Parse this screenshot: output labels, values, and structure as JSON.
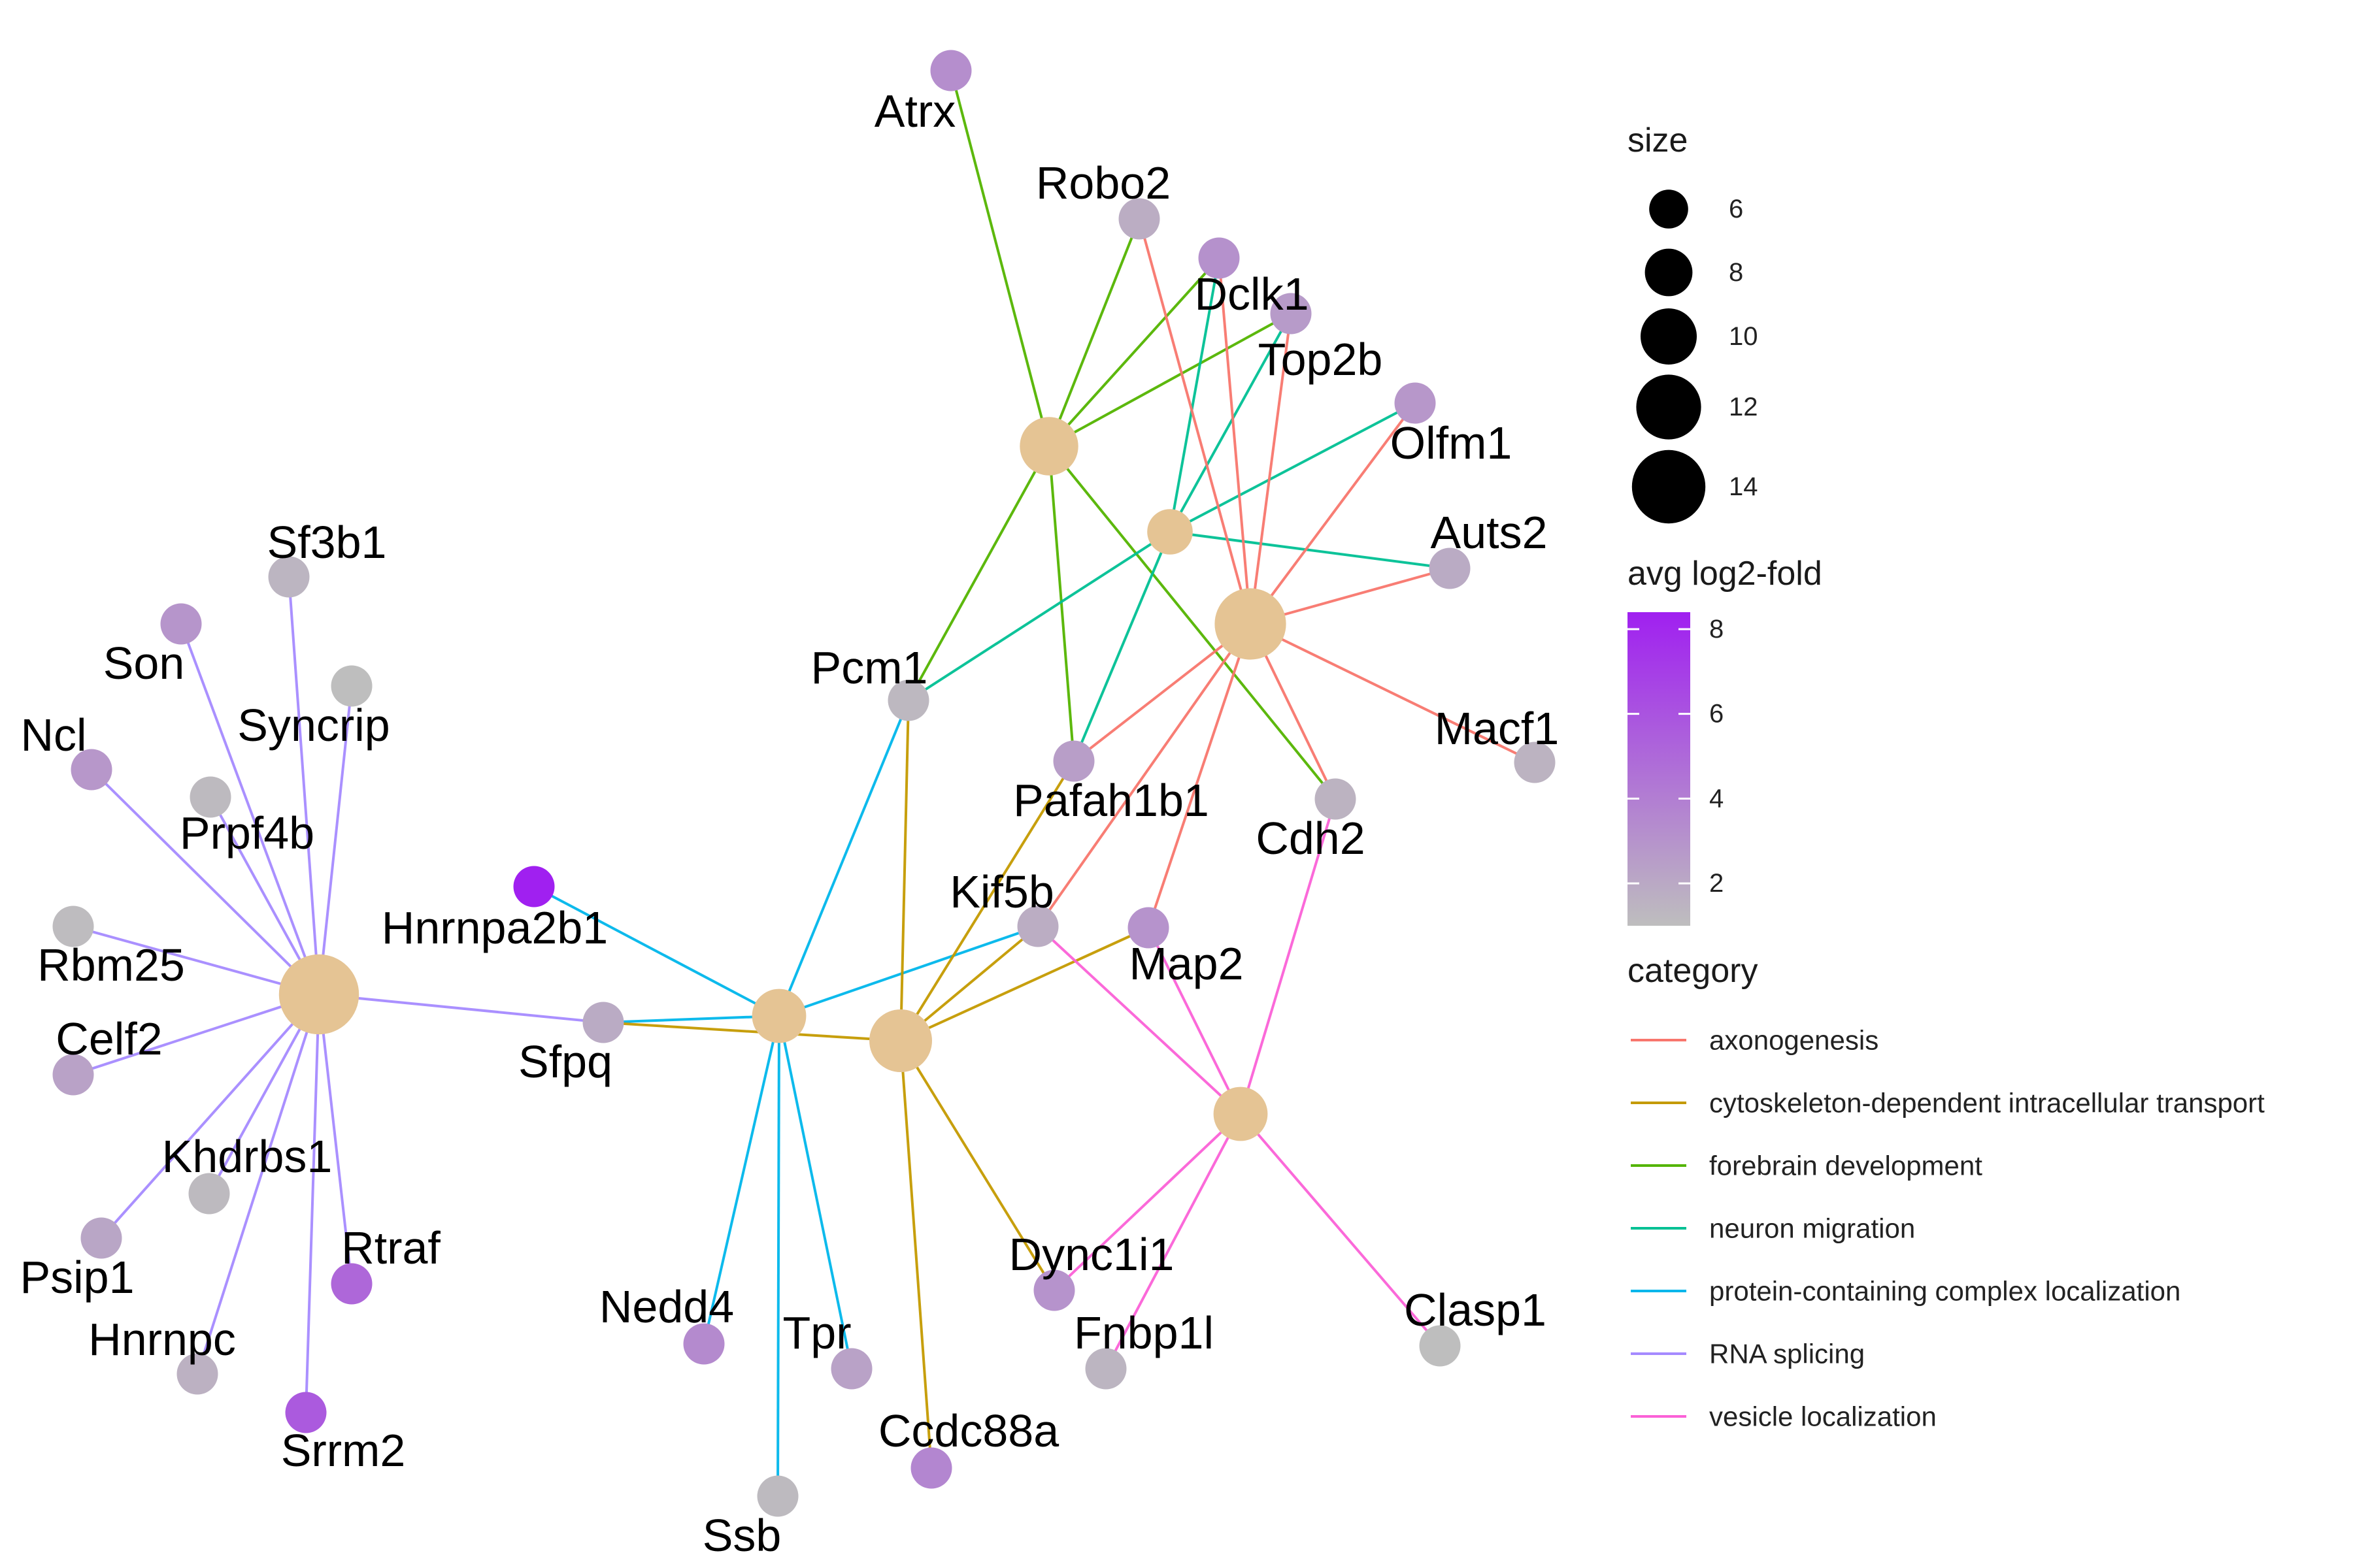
{
  "categories": [
    {
      "key": "axon",
      "label": "axonogenesis",
      "color": "#F8766D"
    },
    {
      "key": "cyto",
      "label": "cytoskeleton-dependent intracellular transport",
      "color": "#C49A00"
    },
    {
      "key": "fore",
      "label": "forebrain development",
      "color": "#53B400"
    },
    {
      "key": "migr",
      "label": "neuron migration",
      "color": "#00C094"
    },
    {
      "key": "prot",
      "label": "protein-containing complex localization",
      "color": "#00B6EB"
    },
    {
      "key": "rna",
      "label": "RNA splicing",
      "color": "#A58AFF"
    },
    {
      "key": "vesi",
      "label": "vesicle localization",
      "color": "#FB61D7"
    }
  ],
  "hubs": [
    {
      "key": "rna",
      "size": 14
    },
    {
      "key": "prot",
      "size": 8
    },
    {
      "key": "cyto",
      "size": 10
    },
    {
      "key": "fore",
      "size": 9
    },
    {
      "key": "migr",
      "size": 6
    },
    {
      "key": "axon",
      "size": 12
    },
    {
      "key": "vesi",
      "size": 8
    }
  ],
  "genes": [
    {
      "id": "Atrx",
      "fc": 3.2
    },
    {
      "id": "Robo2",
      "fc": 1.8
    },
    {
      "id": "Dclk1",
      "fc": 3.1
    },
    {
      "id": "Top2b",
      "fc": 2.6
    },
    {
      "id": "Olfm1",
      "fc": 2.8
    },
    {
      "id": "Auts2",
      "fc": 1.9
    },
    {
      "id": "Macf1",
      "fc": 1.5
    },
    {
      "id": "Cdh2",
      "fc": 1.5
    },
    {
      "id": "Pcm1",
      "fc": 1.3
    },
    {
      "id": "Pafah1b1",
      "fc": 2.5
    },
    {
      "id": "Kif5b",
      "fc": 1.8
    },
    {
      "id": "Map2",
      "fc": 3.0
    },
    {
      "id": "Sf3b1",
      "fc": 1.4
    },
    {
      "id": "Son",
      "fc": 2.9
    },
    {
      "id": "Syncrip",
      "fc": 1.0
    },
    {
      "id": "Ncl",
      "fc": 2.8
    },
    {
      "id": "Prpf4b",
      "fc": 1.2
    },
    {
      "id": "Rbm25",
      "fc": 1.1
    },
    {
      "id": "Celf2",
      "fc": 2.3
    },
    {
      "id": "Hnrnpa2b1",
      "fc": 8.3
    },
    {
      "id": "Sfpq",
      "fc": 1.9
    },
    {
      "id": "Khdrbs1",
      "fc": 1.2
    },
    {
      "id": "Psip1",
      "fc": 2.1
    },
    {
      "id": "Hnrnpc",
      "fc": 1.6
    },
    {
      "id": "Rtraf",
      "fc": 5.0
    },
    {
      "id": "Srrm2",
      "fc": 5.6
    },
    {
      "id": "Nedd4",
      "fc": 3.4
    },
    {
      "id": "Tpr",
      "fc": 2.3
    },
    {
      "id": "Ssb",
      "fc": 1.2
    },
    {
      "id": "Ccdc88a",
      "fc": 3.6
    },
    {
      "id": "Dync1i1",
      "fc": 3.0
    },
    {
      "id": "Fnbp1l",
      "fc": 1.4
    },
    {
      "id": "Clasp1",
      "fc": 1.0
    }
  ],
  "edges": [
    [
      "rna",
      "Sf3b1"
    ],
    [
      "rna",
      "Son"
    ],
    [
      "rna",
      "Syncrip"
    ],
    [
      "rna",
      "Ncl"
    ],
    [
      "rna",
      "Prpf4b"
    ],
    [
      "rna",
      "Rbm25"
    ],
    [
      "rna",
      "Celf2"
    ],
    [
      "rna",
      "Sfpq"
    ],
    [
      "rna",
      "Khdrbs1"
    ],
    [
      "rna",
      "Psip1"
    ],
    [
      "rna",
      "Hnrnpc"
    ],
    [
      "rna",
      "Rtraf"
    ],
    [
      "rna",
      "Srrm2"
    ],
    [
      "prot",
      "Hnrnpa2b1"
    ],
    [
      "prot",
      "Sfpq"
    ],
    [
      "prot",
      "Pcm1"
    ],
    [
      "prot",
      "Kif5b"
    ],
    [
      "prot",
      "Nedd4"
    ],
    [
      "prot",
      "Tpr"
    ],
    [
      "prot",
      "Ssb"
    ],
    [
      "cyto",
      "Sfpq"
    ],
    [
      "cyto",
      "Pcm1"
    ],
    [
      "cyto",
      "Pafah1b1"
    ],
    [
      "cyto",
      "Kif5b"
    ],
    [
      "cyto",
      "Map2"
    ],
    [
      "cyto",
      "Dync1i1"
    ],
    [
      "cyto",
      "Ccdc88a"
    ],
    [
      "fore",
      "Atrx"
    ],
    [
      "fore",
      "Robo2"
    ],
    [
      "fore",
      "Dclk1"
    ],
    [
      "fore",
      "Top2b"
    ],
    [
      "fore",
      "Pcm1"
    ],
    [
      "fore",
      "Pafah1b1"
    ],
    [
      "fore",
      "Cdh2"
    ],
    [
      "migr",
      "Dclk1"
    ],
    [
      "migr",
      "Top2b"
    ],
    [
      "migr",
      "Olfm1"
    ],
    [
      "migr",
      "Auts2"
    ],
    [
      "migr",
      "Pcm1"
    ],
    [
      "migr",
      "Pafah1b1"
    ],
    [
      "axon",
      "Robo2"
    ],
    [
      "axon",
      "Dclk1"
    ],
    [
      "axon",
      "Top2b"
    ],
    [
      "axon",
      "Olfm1"
    ],
    [
      "axon",
      "Auts2"
    ],
    [
      "axon",
      "Macf1"
    ],
    [
      "axon",
      "Cdh2"
    ],
    [
      "axon",
      "Pafah1b1"
    ],
    [
      "axon",
      "Kif5b"
    ],
    [
      "axon",
      "Map2"
    ],
    [
      "vesi",
      "Kif5b"
    ],
    [
      "vesi",
      "Map2"
    ],
    [
      "vesi",
      "Cdh2"
    ],
    [
      "vesi",
      "Dync1i1"
    ],
    [
      "vesi",
      "Fnbp1l"
    ],
    [
      "vesi",
      "Clasp1"
    ]
  ],
  "legend": {
    "size_title": "size",
    "size_values": [
      "6",
      "8",
      "10",
      "12",
      "14"
    ],
    "fold_title": "avg log2-fold",
    "fold_ticks": [
      "2",
      "4",
      "6",
      "8"
    ],
    "fold_colors": {
      "low": "#BEBEBE",
      "high": "#A020F0"
    },
    "category_title": "category"
  },
  "hub_color": "#E5C494"
}
